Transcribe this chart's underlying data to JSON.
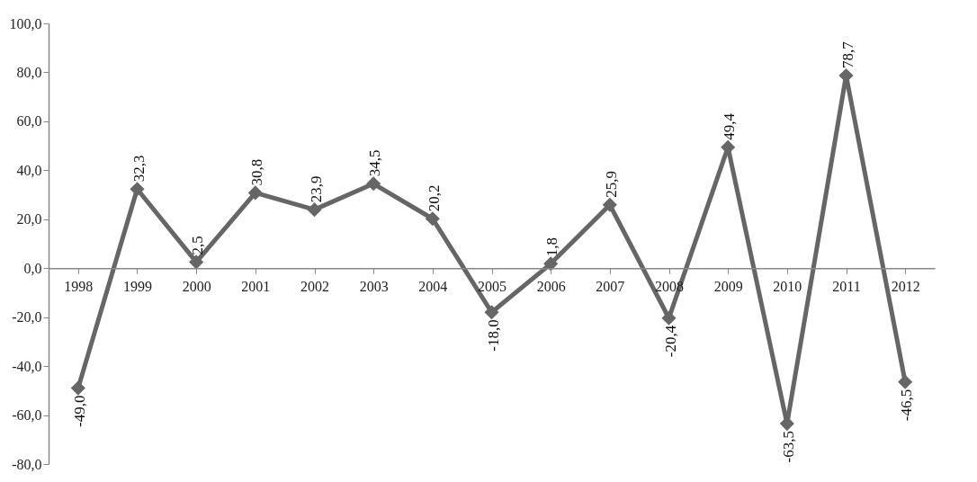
{
  "chart_data": {
    "type": "line",
    "categories": [
      "1998",
      "1999",
      "2000",
      "2001",
      "2002",
      "2003",
      "2004",
      "2005",
      "2006",
      "2007",
      "2008",
      "2009",
      "2010",
      "2011",
      "2012"
    ],
    "series": [
      {
        "color": "#666666",
        "values": [
          -49.0,
          32.3,
          2.5,
          30.8,
          23.9,
          34.5,
          20.2,
          -18.0,
          1.8,
          25.9,
          -20.4,
          49.4,
          -63.5,
          78.7,
          -46.5
        ],
        "value_labels": [
          "-49,0",
          "32,3",
          "2,5",
          "30,8",
          "23,9",
          "34,5",
          "20,2",
          "-18,0",
          "1,8",
          "25,9",
          "-20,4",
          "49,4",
          "-63,5",
          "78,7",
          "-46,5"
        ]
      }
    ],
    "ylim": [
      -80,
      100
    ],
    "yticks": [
      {
        "value": -80,
        "label": "-80,0"
      },
      {
        "value": -60,
        "label": "-60,0"
      },
      {
        "value": -40,
        "label": "-40,0"
      },
      {
        "value": -20,
        "label": "-20,0"
      },
      {
        "value": 0,
        "label": "0,0"
      },
      {
        "value": 20,
        "label": "20,0"
      },
      {
        "value": 40,
        "label": "40,0"
      },
      {
        "value": 60,
        "label": "60,0"
      },
      {
        "value": 80,
        "label": "80,0"
      },
      {
        "value": 100,
        "label": "100,0"
      }
    ],
    "grid": false,
    "marker": "diamond",
    "line_style": "solid"
  }
}
